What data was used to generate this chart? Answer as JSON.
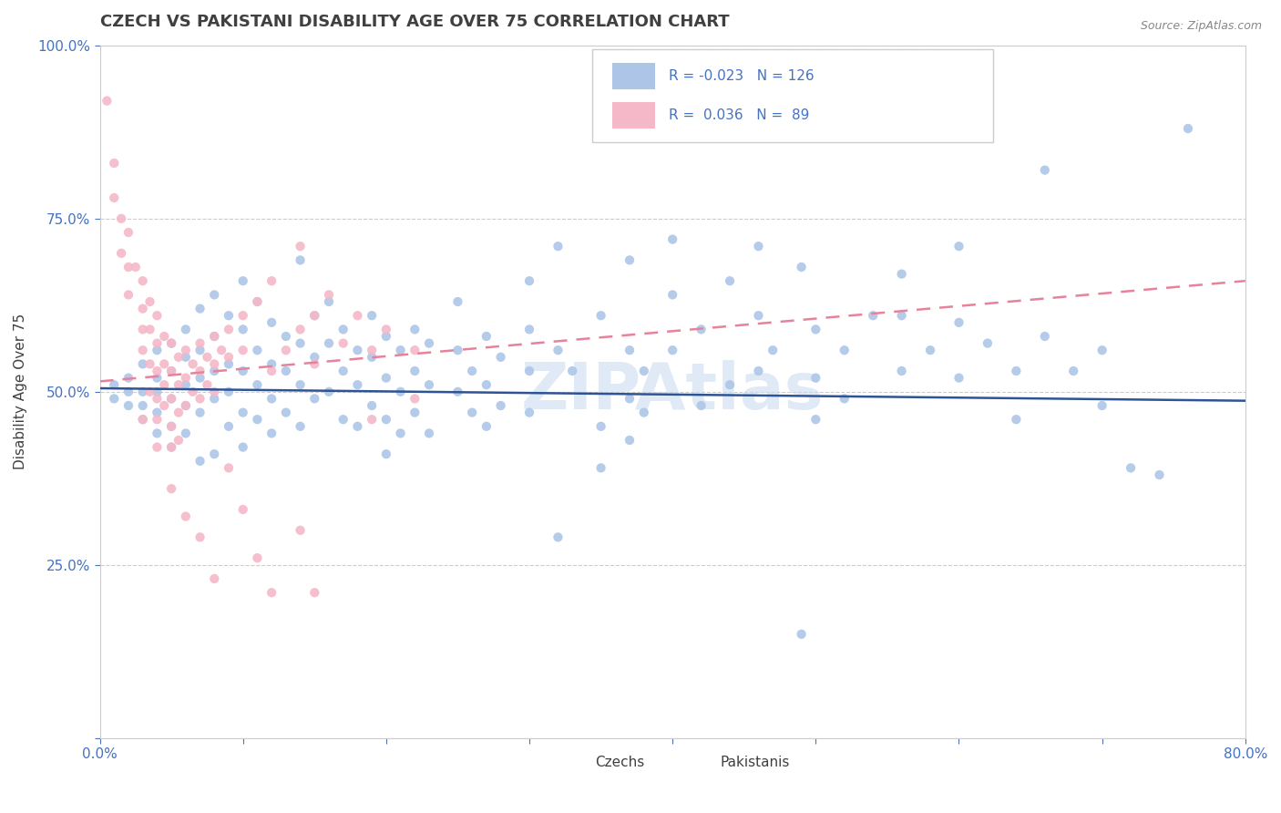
{
  "title": "CZECH VS PAKISTANI DISABILITY AGE OVER 75 CORRELATION CHART",
  "source_text": "Source: ZipAtlas.com",
  "ylabel": "Disability Age Over 75",
  "xlim": [
    0.0,
    0.8
  ],
  "ylim": [
    0.0,
    1.0
  ],
  "czech_color": "#adc6e8",
  "pakistani_color": "#f4b8c8",
  "czech_line_color": "#2f5496",
  "pakistani_line_color": "#e8829a",
  "watermark": "ZIPAtlas",
  "legend_R_czech": "-0.023",
  "legend_N_czech": "126",
  "legend_R_pakistani": "0.036",
  "legend_N_pakistani": "89",
  "title_color": "#404040",
  "axis_color": "#4472c4",
  "czechs_label": "Czechs",
  "pakistanis_label": "Pakistanis",
  "czech_line": [
    0.0,
    0.505,
    0.8,
    0.487
  ],
  "pakistani_line": [
    0.0,
    0.515,
    0.8,
    0.66
  ],
  "czech_dots": [
    [
      0.01,
      0.51
    ],
    [
      0.01,
      0.49
    ],
    [
      0.02,
      0.52
    ],
    [
      0.02,
      0.48
    ],
    [
      0.02,
      0.5
    ],
    [
      0.03,
      0.54
    ],
    [
      0.03,
      0.48
    ],
    [
      0.03,
      0.46
    ],
    [
      0.03,
      0.5
    ],
    [
      0.04,
      0.56
    ],
    [
      0.04,
      0.5
    ],
    [
      0.04,
      0.47
    ],
    [
      0.04,
      0.52
    ],
    [
      0.04,
      0.44
    ],
    [
      0.05,
      0.57
    ],
    [
      0.05,
      0.53
    ],
    [
      0.05,
      0.49
    ],
    [
      0.05,
      0.45
    ],
    [
      0.05,
      0.42
    ],
    [
      0.06,
      0.59
    ],
    [
      0.06,
      0.55
    ],
    [
      0.06,
      0.51
    ],
    [
      0.06,
      0.48
    ],
    [
      0.06,
      0.44
    ],
    [
      0.07,
      0.62
    ],
    [
      0.07,
      0.56
    ],
    [
      0.07,
      0.52
    ],
    [
      0.07,
      0.47
    ],
    [
      0.07,
      0.4
    ],
    [
      0.08,
      0.64
    ],
    [
      0.08,
      0.58
    ],
    [
      0.08,
      0.53
    ],
    [
      0.08,
      0.49
    ],
    [
      0.08,
      0.41
    ],
    [
      0.09,
      0.61
    ],
    [
      0.09,
      0.54
    ],
    [
      0.09,
      0.5
    ],
    [
      0.09,
      0.45
    ],
    [
      0.1,
      0.66
    ],
    [
      0.1,
      0.59
    ],
    [
      0.1,
      0.53
    ],
    [
      0.1,
      0.47
    ],
    [
      0.1,
      0.42
    ],
    [
      0.11,
      0.63
    ],
    [
      0.11,
      0.56
    ],
    [
      0.11,
      0.51
    ],
    [
      0.11,
      0.46
    ],
    [
      0.12,
      0.6
    ],
    [
      0.12,
      0.54
    ],
    [
      0.12,
      0.49
    ],
    [
      0.12,
      0.44
    ],
    [
      0.13,
      0.58
    ],
    [
      0.13,
      0.53
    ],
    [
      0.13,
      0.47
    ],
    [
      0.14,
      0.69
    ],
    [
      0.14,
      0.57
    ],
    [
      0.14,
      0.51
    ],
    [
      0.14,
      0.45
    ],
    [
      0.15,
      0.61
    ],
    [
      0.15,
      0.55
    ],
    [
      0.15,
      0.49
    ],
    [
      0.16,
      0.63
    ],
    [
      0.16,
      0.57
    ],
    [
      0.16,
      0.5
    ],
    [
      0.17,
      0.59
    ],
    [
      0.17,
      0.53
    ],
    [
      0.17,
      0.46
    ],
    [
      0.18,
      0.56
    ],
    [
      0.18,
      0.51
    ],
    [
      0.18,
      0.45
    ],
    [
      0.19,
      0.61
    ],
    [
      0.19,
      0.55
    ],
    [
      0.19,
      0.48
    ],
    [
      0.2,
      0.58
    ],
    [
      0.2,
      0.52
    ],
    [
      0.2,
      0.46
    ],
    [
      0.2,
      0.41
    ],
    [
      0.21,
      0.56
    ],
    [
      0.21,
      0.5
    ],
    [
      0.21,
      0.44
    ],
    [
      0.22,
      0.59
    ],
    [
      0.22,
      0.53
    ],
    [
      0.22,
      0.47
    ],
    [
      0.23,
      0.57
    ],
    [
      0.23,
      0.51
    ],
    [
      0.23,
      0.44
    ],
    [
      0.25,
      0.63
    ],
    [
      0.25,
      0.56
    ],
    [
      0.25,
      0.5
    ],
    [
      0.26,
      0.53
    ],
    [
      0.26,
      0.47
    ],
    [
      0.27,
      0.58
    ],
    [
      0.27,
      0.51
    ],
    [
      0.27,
      0.45
    ],
    [
      0.28,
      0.55
    ],
    [
      0.28,
      0.48
    ],
    [
      0.3,
      0.66
    ],
    [
      0.3,
      0.59
    ],
    [
      0.3,
      0.53
    ],
    [
      0.3,
      0.47
    ],
    [
      0.32,
      0.71
    ],
    [
      0.32,
      0.56
    ],
    [
      0.32,
      0.29
    ],
    [
      0.33,
      0.53
    ],
    [
      0.35,
      0.61
    ],
    [
      0.35,
      0.45
    ],
    [
      0.35,
      0.39
    ],
    [
      0.37,
      0.69
    ],
    [
      0.37,
      0.56
    ],
    [
      0.37,
      0.49
    ],
    [
      0.37,
      0.43
    ],
    [
      0.38,
      0.53
    ],
    [
      0.38,
      0.47
    ],
    [
      0.4,
      0.72
    ],
    [
      0.4,
      0.64
    ],
    [
      0.4,
      0.56
    ],
    [
      0.42,
      0.59
    ],
    [
      0.42,
      0.48
    ],
    [
      0.44,
      0.66
    ],
    [
      0.44,
      0.51
    ],
    [
      0.46,
      0.71
    ],
    [
      0.46,
      0.61
    ],
    [
      0.46,
      0.53
    ],
    [
      0.47,
      0.56
    ],
    [
      0.49,
      0.68
    ],
    [
      0.49,
      0.15
    ],
    [
      0.5,
      0.59
    ],
    [
      0.5,
      0.52
    ],
    [
      0.5,
      0.46
    ],
    [
      0.52,
      0.56
    ],
    [
      0.52,
      0.49
    ],
    [
      0.54,
      0.61
    ],
    [
      0.56,
      0.67
    ],
    [
      0.56,
      0.61
    ],
    [
      0.56,
      0.53
    ],
    [
      0.58,
      0.56
    ],
    [
      0.6,
      0.71
    ],
    [
      0.6,
      0.6
    ],
    [
      0.6,
      0.52
    ],
    [
      0.62,
      0.57
    ],
    [
      0.64,
      0.53
    ],
    [
      0.64,
      0.46
    ],
    [
      0.66,
      0.82
    ],
    [
      0.66,
      0.58
    ],
    [
      0.68,
      0.53
    ],
    [
      0.7,
      0.56
    ],
    [
      0.7,
      0.48
    ],
    [
      0.72,
      0.39
    ],
    [
      0.74,
      0.38
    ],
    [
      0.76,
      0.88
    ]
  ],
  "pakistani_dots": [
    [
      0.005,
      0.92
    ],
    [
      0.01,
      0.83
    ],
    [
      0.01,
      0.78
    ],
    [
      0.015,
      0.75
    ],
    [
      0.015,
      0.7
    ],
    [
      0.02,
      0.73
    ],
    [
      0.02,
      0.68
    ],
    [
      0.02,
      0.64
    ],
    [
      0.025,
      0.68
    ],
    [
      0.03,
      0.66
    ],
    [
      0.03,
      0.62
    ],
    [
      0.03,
      0.59
    ],
    [
      0.03,
      0.56
    ],
    [
      0.035,
      0.63
    ],
    [
      0.035,
      0.59
    ],
    [
      0.035,
      0.54
    ],
    [
      0.035,
      0.5
    ],
    [
      0.04,
      0.61
    ],
    [
      0.04,
      0.57
    ],
    [
      0.04,
      0.53
    ],
    [
      0.04,
      0.49
    ],
    [
      0.04,
      0.46
    ],
    [
      0.045,
      0.58
    ],
    [
      0.045,
      0.54
    ],
    [
      0.045,
      0.51
    ],
    [
      0.045,
      0.48
    ],
    [
      0.05,
      0.57
    ],
    [
      0.05,
      0.53
    ],
    [
      0.05,
      0.49
    ],
    [
      0.05,
      0.45
    ],
    [
      0.05,
      0.42
    ],
    [
      0.055,
      0.55
    ],
    [
      0.055,
      0.51
    ],
    [
      0.055,
      0.47
    ],
    [
      0.055,
      0.43
    ],
    [
      0.06,
      0.56
    ],
    [
      0.06,
      0.52
    ],
    [
      0.06,
      0.48
    ],
    [
      0.065,
      0.54
    ],
    [
      0.065,
      0.5
    ],
    [
      0.07,
      0.57
    ],
    [
      0.07,
      0.53
    ],
    [
      0.07,
      0.49
    ],
    [
      0.075,
      0.55
    ],
    [
      0.075,
      0.51
    ],
    [
      0.08,
      0.58
    ],
    [
      0.08,
      0.54
    ],
    [
      0.08,
      0.5
    ],
    [
      0.085,
      0.56
    ],
    [
      0.09,
      0.59
    ],
    [
      0.09,
      0.55
    ],
    [
      0.1,
      0.61
    ],
    [
      0.1,
      0.56
    ],
    [
      0.11,
      0.63
    ],
    [
      0.12,
      0.66
    ],
    [
      0.12,
      0.53
    ],
    [
      0.13,
      0.56
    ],
    [
      0.14,
      0.71
    ],
    [
      0.14,
      0.59
    ],
    [
      0.15,
      0.61
    ],
    [
      0.15,
      0.54
    ],
    [
      0.16,
      0.64
    ],
    [
      0.17,
      0.57
    ],
    [
      0.18,
      0.61
    ],
    [
      0.19,
      0.56
    ],
    [
      0.19,
      0.46
    ],
    [
      0.2,
      0.59
    ],
    [
      0.22,
      0.56
    ],
    [
      0.22,
      0.49
    ],
    [
      0.09,
      0.39
    ],
    [
      0.1,
      0.33
    ],
    [
      0.07,
      0.29
    ],
    [
      0.08,
      0.23
    ],
    [
      0.05,
      0.36
    ],
    [
      0.06,
      0.32
    ],
    [
      0.04,
      0.42
    ],
    [
      0.03,
      0.46
    ],
    [
      0.11,
      0.26
    ],
    [
      0.12,
      0.21
    ],
    [
      0.14,
      0.3
    ],
    [
      0.15,
      0.21
    ]
  ]
}
